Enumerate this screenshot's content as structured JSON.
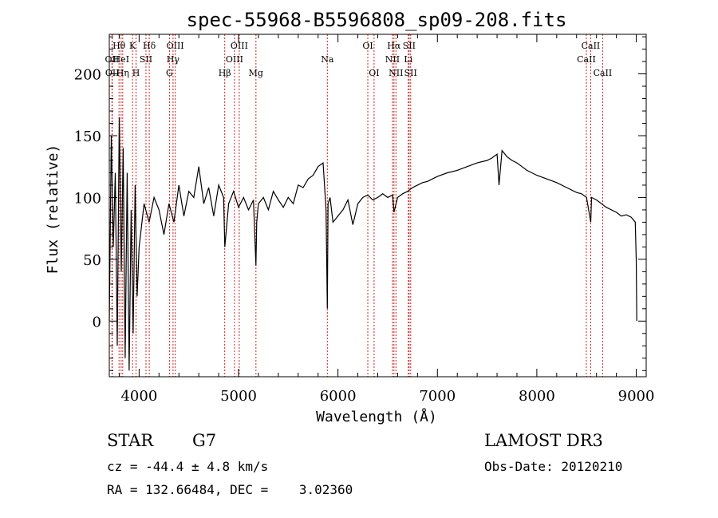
{
  "chart_data": {
    "type": "line",
    "title": "spec-55968-B5596808_sp09-208.fits",
    "xlabel": "Wavelength (Å)",
    "ylabel": "Flux (relative)",
    "xlim": [
      3700,
      9100
    ],
    "ylim": [
      -45,
      232
    ],
    "xticks": [
      4000,
      5000,
      6000,
      7000,
      8000,
      9000
    ],
    "yticks": [
      0,
      50,
      100,
      150,
      200
    ],
    "series": [
      {
        "name": "flux",
        "x": [
          3700,
          3720,
          3740,
          3760,
          3780,
          3800,
          3820,
          3840,
          3860,
          3880,
          3900,
          3920,
          3940,
          3960,
          3980,
          4000,
          4050,
          4100,
          4150,
          4200,
          4250,
          4300,
          4350,
          4400,
          4450,
          4500,
          4550,
          4600,
          4650,
          4700,
          4750,
          4800,
          4850,
          4862,
          4900,
          4950,
          5000,
          5050,
          5100,
          5150,
          5175,
          5183,
          5200,
          5250,
          5300,
          5350,
          5400,
          5450,
          5500,
          5550,
          5600,
          5650,
          5700,
          5750,
          5800,
          5850,
          5880,
          5893,
          5900,
          5920,
          5950,
          6000,
          6050,
          6100,
          6150,
          6200,
          6250,
          6300,
          6350,
          6400,
          6450,
          6500,
          6550,
          6563,
          6600,
          6650,
          6700,
          6750,
          6800,
          6850,
          6900,
          6950,
          7000,
          7100,
          7200,
          7300,
          7400,
          7500,
          7550,
          7600,
          7620,
          7650,
          7700,
          7750,
          7800,
          7850,
          7900,
          7950,
          8000,
          8100,
          8200,
          8300,
          8400,
          8450,
          8500,
          8542,
          8550,
          8600,
          8650,
          8700,
          8750,
          8800,
          8850,
          8900,
          8950,
          8990,
          9000,
          9005
        ],
        "y": [
          0,
          150,
          60,
          120,
          -20,
          165,
          40,
          140,
          -30,
          120,
          -40,
          90,
          -10,
          110,
          20,
          60,
          95,
          80,
          100,
          90,
          70,
          95,
          80,
          110,
          85,
          105,
          100,
          125,
          95,
          108,
          85,
          110,
          100,
          60,
          95,
          105,
          92,
          100,
          90,
          98,
          45,
          80,
          95,
          100,
          90,
          105,
          98,
          92,
          100,
          95,
          110,
          108,
          115,
          118,
          125,
          128,
          90,
          10,
          95,
          100,
          80,
          85,
          90,
          98,
          78,
          95,
          100,
          102,
          98,
          100,
          103,
          100,
          102,
          88,
          100,
          103,
          105,
          108,
          110,
          112,
          113,
          115,
          117,
          120,
          122,
          125,
          128,
          130,
          132,
          135,
          110,
          138,
          133,
          130,
          128,
          125,
          122,
          120,
          118,
          115,
          112,
          108,
          104,
          103,
          100,
          80,
          100,
          98,
          95,
          92,
          90,
          88,
          85,
          86,
          84,
          80,
          50,
          0
        ]
      }
    ],
    "line_markers": [
      {
        "label": "Hθ",
        "wavelength": 3798,
        "row": 1
      },
      {
        "label": "OII",
        "wavelength": 3727,
        "row": 2
      },
      {
        "label": "OII",
        "wavelength": 3730,
        "row": 3
      },
      {
        "label": "HeI",
        "wavelength": 3819,
        "row": 2
      },
      {
        "label": "Hη",
        "wavelength": 3835,
        "row": 3
      },
      {
        "label": "K",
        "wavelength": 3934,
        "row": 1
      },
      {
        "label": "H",
        "wavelength": 3969,
        "row": 3
      },
      {
        "label": "SII",
        "wavelength": 4069,
        "row": 2
      },
      {
        "label": "Hδ",
        "wavelength": 4102,
        "row": 1
      },
      {
        "label": "OIII",
        "wavelength": 4363,
        "row": 1
      },
      {
        "label": "Hγ",
        "wavelength": 4341,
        "row": 2
      },
      {
        "label": "G",
        "wavelength": 4305,
        "row": 3
      },
      {
        "label": "Hβ",
        "wavelength": 4861,
        "row": 3
      },
      {
        "label": "OIII",
        "wavelength": 5007,
        "row": 1
      },
      {
        "label": "OIII",
        "wavelength": 4959,
        "row": 2
      },
      {
        "label": "Mg",
        "wavelength": 5175,
        "row": 3
      },
      {
        "label": "Na",
        "wavelength": 5893,
        "row": 2
      },
      {
        "label": "OI",
        "wavelength": 6300,
        "row": 1
      },
      {
        "label": "OI",
        "wavelength": 6363,
        "row": 3
      },
      {
        "label": "Hα",
        "wavelength": 6563,
        "row": 1
      },
      {
        "label": "SII",
        "wavelength": 6716,
        "row": 1
      },
      {
        "label": "NII",
        "wavelength": 6548,
        "row": 2
      },
      {
        "label": "Li",
        "wavelength": 6707,
        "row": 2
      },
      {
        "label": "NII",
        "wavelength": 6583,
        "row": 3
      },
      {
        "label": "SII",
        "wavelength": 6731,
        "row": 3
      },
      {
        "label": "CaII",
        "wavelength": 8542,
        "row": 1
      },
      {
        "label": "CaII",
        "wavelength": 8498,
        "row": 2
      },
      {
        "label": "CaII",
        "wavelength": 8662,
        "row": 3
      }
    ],
    "marker_color": "#d62020"
  },
  "info": {
    "object_class": "STAR",
    "subclass": "G7",
    "survey": "LAMOST DR3",
    "cz": "cz = -44.4 ± 4.8 km/s",
    "obs_date": "Obs-Date: 20120210",
    "coords": "RA = 132.66484, DEC =    3.02360"
  }
}
